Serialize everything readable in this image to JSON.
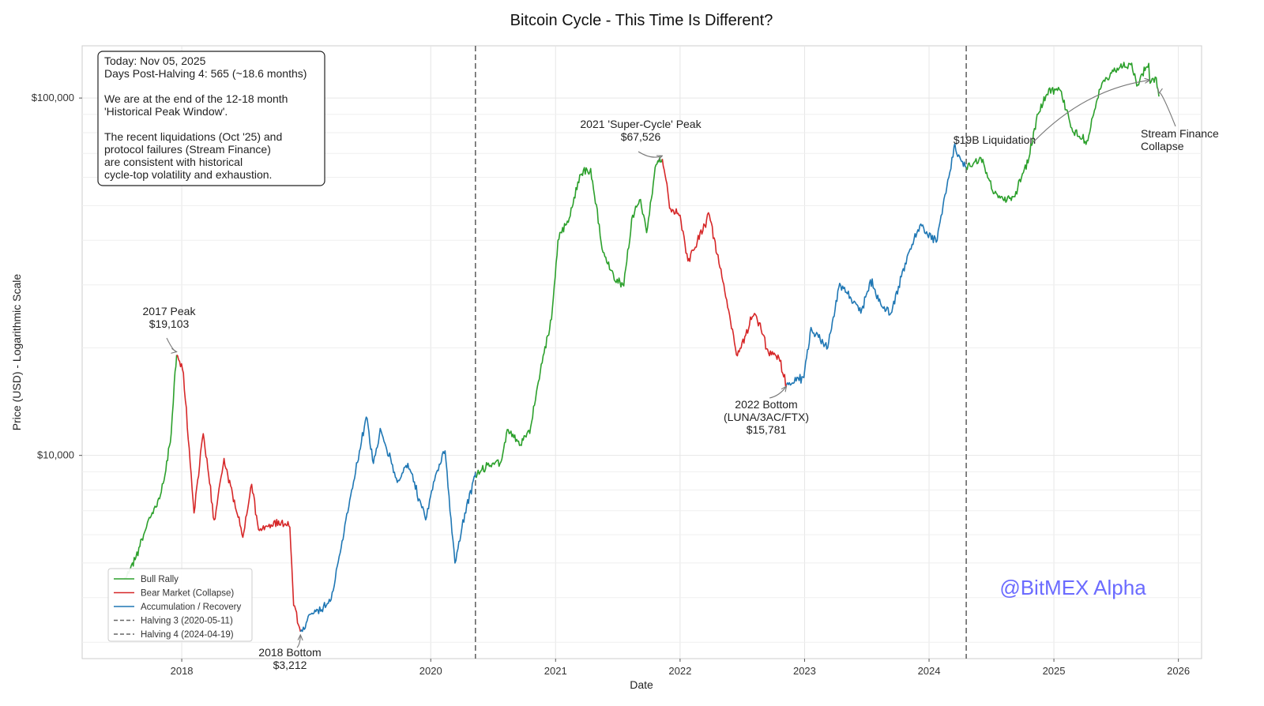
{
  "chart_data": {
    "type": "line",
    "title": "Bitcoin Cycle - This Time Is Different?",
    "xlabel": "Date",
    "ylabel": "Price (USD) - Logarithmic Scale",
    "y_scale": "log",
    "x_range": [
      "2017-03-15",
      "2026-03-10"
    ],
    "y_range": [
      2700,
      140000
    ],
    "x_ticks": [
      {
        "date": "2018-01-01",
        "label": "2018"
      },
      {
        "date": "2020-01-01",
        "label": "2020"
      },
      {
        "date": "2021-01-01",
        "label": "2021"
      },
      {
        "date": "2022-01-01",
        "label": "2022"
      },
      {
        "date": "2023-01-01",
        "label": "2023"
      },
      {
        "date": "2024-01-01",
        "label": "2024"
      },
      {
        "date": "2025-01-01",
        "label": "2025"
      },
      {
        "date": "2026-01-01",
        "label": "2026"
      }
    ],
    "y_ticks": [
      {
        "value": 10000,
        "label": "$10,000"
      },
      {
        "value": 100000,
        "label": "$100,000"
      }
    ],
    "grid": true,
    "colors": {
      "bull": "#2ca02c",
      "bear": "#d62728",
      "accumulation": "#1f77b4",
      "halving": "#666666",
      "watermark": "#6b6bff"
    },
    "series": [
      {
        "name": "Bull Rally",
        "color": "#2ca02c",
        "segments": [
          [
            [
              "2017-07-16",
              4500
            ],
            [
              "2017-08-20",
              5200
            ],
            [
              "2017-09-25",
              6600
            ],
            [
              "2017-10-20",
              7200
            ],
            [
              "2017-11-10",
              8500
            ],
            [
              "2017-12-01",
              11500
            ],
            [
              "2017-12-10",
              16000
            ],
            [
              "2017-12-17",
              19103
            ]
          ],
          [
            [
              "2020-05-11",
              8700
            ],
            [
              "2020-06-15",
              9400
            ],
            [
              "2020-07-25",
              9600
            ],
            [
              "2020-08-15",
              11800
            ],
            [
              "2020-09-20",
              10700
            ],
            [
              "2020-10-20",
              12000
            ],
            [
              "2020-11-20",
              18000
            ],
            [
              "2020-12-20",
              24000
            ],
            [
              "2021-01-08",
              40000
            ],
            [
              "2021-02-10",
              46000
            ],
            [
              "2021-03-13",
              61000
            ],
            [
              "2021-04-14",
              63500
            ],
            [
              "2021-05-20",
              37000
            ],
            [
              "2021-06-22",
              31000
            ],
            [
              "2021-07-20",
              29800
            ],
            [
              "2021-08-15",
              47000
            ],
            [
              "2021-09-07",
              52000
            ],
            [
              "2021-09-25",
              42000
            ],
            [
              "2021-10-20",
              64000
            ],
            [
              "2021-11-10",
              67526
            ]
          ],
          [
            [
              "2024-04-19",
              64000
            ],
            [
              "2024-06-01",
              68000
            ],
            [
              "2024-07-05",
              55000
            ],
            [
              "2024-08-05",
              52000
            ],
            [
              "2024-09-06",
              53000
            ],
            [
              "2024-10-20",
              68000
            ],
            [
              "2024-11-13",
              90000
            ],
            [
              "2024-12-17",
              106000
            ],
            [
              "2025-01-20",
              105000
            ],
            [
              "2025-02-28",
              80000
            ],
            [
              "2025-04-08",
              76000
            ],
            [
              "2025-05-22",
              110000
            ],
            [
              "2025-07-14",
              122000
            ],
            [
              "2025-08-14",
              124000
            ],
            [
              "2025-09-01",
              108000
            ],
            [
              "2025-10-06",
              125000
            ],
            [
              "2025-10-10",
              110000
            ],
            [
              "2025-10-28",
              114000
            ],
            [
              "2025-11-05",
              101000
            ]
          ]
        ]
      },
      {
        "name": "Bear Market (Collapse)",
        "color": "#d62728",
        "segments": [
          [
            [
              "2017-12-17",
              19103
            ],
            [
              "2018-01-06",
              17000
            ],
            [
              "2018-02-06",
              6900
            ],
            [
              "2018-03-05",
              11500
            ],
            [
              "2018-04-06",
              6600
            ],
            [
              "2018-05-05",
              9800
            ],
            [
              "2018-06-29",
              5900
            ],
            [
              "2018-07-25",
              8300
            ],
            [
              "2018-08-14",
              6200
            ],
            [
              "2018-09-20",
              6400
            ],
            [
              "2018-10-20",
              6500
            ],
            [
              "2018-11-14",
              6300
            ],
            [
              "2018-11-25",
              3800
            ],
            [
              "2018-12-15",
              3212
            ]
          ],
          [
            [
              "2021-11-10",
              67526
            ],
            [
              "2021-12-04",
              49000
            ],
            [
              "2022-01-01",
              47000
            ],
            [
              "2022-01-24",
              35000
            ],
            [
              "2022-03-28",
              47000
            ],
            [
              "2022-05-12",
              28800
            ],
            [
              "2022-06-18",
              19000
            ],
            [
              "2022-07-29",
              24000
            ],
            [
              "2022-08-13",
              24500
            ],
            [
              "2022-09-20",
              19000
            ],
            [
              "2022-10-15",
              19100
            ],
            [
              "2022-11-09",
              15781
            ]
          ]
        ]
      },
      {
        "name": "Accumulation / Recovery",
        "color": "#1f77b4",
        "segments": [
          [
            [
              "2018-12-15",
              3212
            ],
            [
              "2019-01-15",
              3600
            ],
            [
              "2019-02-15",
              3700
            ],
            [
              "2019-03-15",
              3950
            ],
            [
              "2019-04-02",
              4900
            ],
            [
              "2019-05-14",
              8000
            ],
            [
              "2019-06-26",
              12800
            ],
            [
              "2019-07-17",
              9500
            ],
            [
              "2019-08-06",
              11900
            ],
            [
              "2019-09-25",
              8400
            ],
            [
              "2019-10-26",
              9500
            ],
            [
              "2019-12-17",
              6600
            ],
            [
              "2020-01-15",
              8800
            ],
            [
              "2020-02-12",
              10300
            ],
            [
              "2020-03-12",
              5000
            ],
            [
              "2020-04-10",
              6900
            ],
            [
              "2020-05-10",
              8800
            ],
            [
              "2020-05-11",
              8700
            ]
          ],
          [
            [
              "2022-11-09",
              15781
            ],
            [
              "2022-12-30",
              16500
            ],
            [
              "2023-01-20",
              22800
            ],
            [
              "2023-03-10",
              20000
            ],
            [
              "2023-04-14",
              30300
            ],
            [
              "2023-06-15",
              25000
            ],
            [
              "2023-07-13",
              31000
            ],
            [
              "2023-08-17",
              26000
            ],
            [
              "2023-09-11",
              25000
            ],
            [
              "2023-10-23",
              34500
            ],
            [
              "2023-12-05",
              44000
            ],
            [
              "2024-01-22",
              39500
            ],
            [
              "2024-02-28",
              60000
            ],
            [
              "2024-03-14",
              73000
            ],
            [
              "2024-04-19",
              64000
            ]
          ]
        ]
      }
    ],
    "halvings": [
      {
        "date": "2020-05-11",
        "label": "Halving 3 (2020-05-11)"
      },
      {
        "date": "2024-04-19",
        "label": "Halving 4 (2024-04-19)"
      }
    ],
    "annotations": [
      {
        "lines": [
          "2017 Peak",
          "$19,103"
        ],
        "date": "2017-12-17",
        "value": 19103
      },
      {
        "lines": [
          "2018 Bottom",
          "$3,212"
        ],
        "date": "2018-12-15",
        "value": 3212
      },
      {
        "lines": [
          "2021 'Super-Cycle' Peak",
          "$67,526"
        ],
        "date": "2021-11-10",
        "value": 67526
      },
      {
        "lines": [
          "2022 Bottom",
          "(LUNA/3AC/FTX)",
          "$15,781"
        ],
        "date": "2022-11-09",
        "value": 15781
      },
      {
        "lines": [
          "$19B Liquidation"
        ],
        "date": "2025-10-10",
        "value": 110000
      },
      {
        "lines": [
          "Stream Finance",
          "Collapse"
        ],
        "date": "2025-11-05",
        "value": 101000
      }
    ],
    "legend": {
      "position": "lower-left",
      "entries": [
        "Bull Rally",
        "Bear Market (Collapse)",
        "Accumulation / Recovery",
        "Halving 3 (2020-05-11)",
        "Halving 4 (2024-04-19)"
      ]
    }
  },
  "info_box": {
    "lines": [
      "Today: Nov 05, 2025",
      "Days Post-Halving 4: 565 (~18.6 months)",
      "",
      "We are at the end of the 12-18 month",
      "'Historical Peak Window'.",
      "",
      "The recent liquidations (Oct '25) and",
      "protocol failures (Stream Finance)",
      "are consistent with historical",
      "cycle-top volatility and exhaustion."
    ]
  },
  "watermark": "@BitMEX Alpha"
}
